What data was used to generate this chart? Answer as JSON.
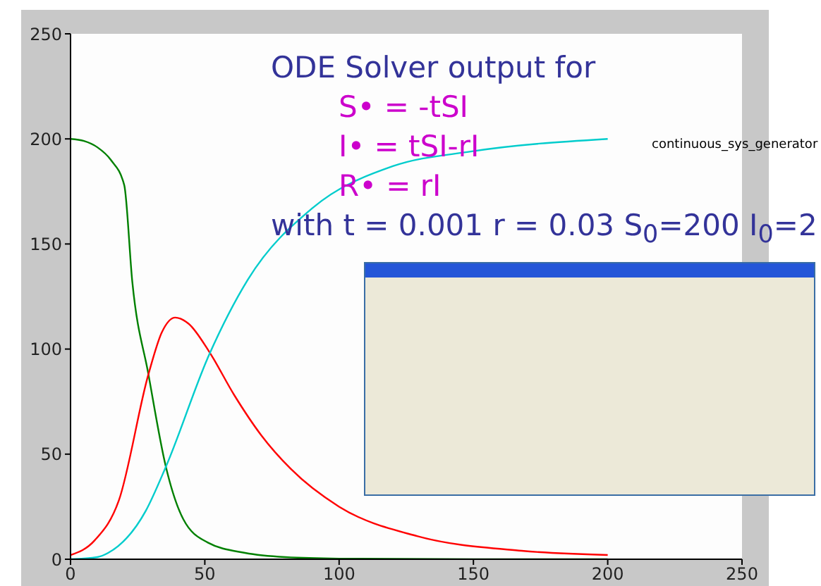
{
  "chart_data": {
    "type": "line",
    "xlim": [
      0,
      250
    ],
    "ylim": [
      0,
      250
    ],
    "xticks": [
      0,
      50,
      100,
      150,
      200,
      250
    ],
    "yticks": [
      0,
      50,
      100,
      150,
      200,
      250
    ],
    "marker": "none",
    "line_style": "solid",
    "annotations": [
      "ODE Solver output for",
      "S• = -tSI",
      "I• = tSI-rI",
      "R• = rI",
      "with t = 0.001 r = 0.03 S$_{0}$=200 I$_{0}$=2",
      "continuous_sys_generator"
    ],
    "series": [
      {
        "color": "#008000",
        "x": [
          0,
          5,
          10,
          15,
          20,
          23,
          29,
          35.5,
          42,
          51,
          65,
          80,
          100,
          150,
          200
        ],
        "values": [
          200,
          199,
          196,
          190,
          178,
          132,
          88,
          44,
          19,
          8,
          3,
          1,
          0.3,
          0,
          0
        ]
      },
      {
        "color": "#ff0000",
        "x": [
          0,
          9,
          18,
          29,
          34,
          39,
          44,
          51.5,
          61,
          71,
          82,
          100,
          129,
          168,
          200
        ],
        "values": [
          2,
          9,
          28,
          88,
          108,
          115,
          112,
          99,
          78,
          59,
          43,
          25,
          11,
          4,
          2
        ]
      },
      {
        "color": "#00cccc",
        "x": [
          0,
          10,
          14,
          28,
          35.5,
          51.5,
          66,
          90,
          120,
          149,
          200
        ],
        "values": [
          0,
          1,
          3,
          23,
          44,
          97,
          133,
          167,
          187,
          194,
          200
        ]
      }
    ]
  }
}
